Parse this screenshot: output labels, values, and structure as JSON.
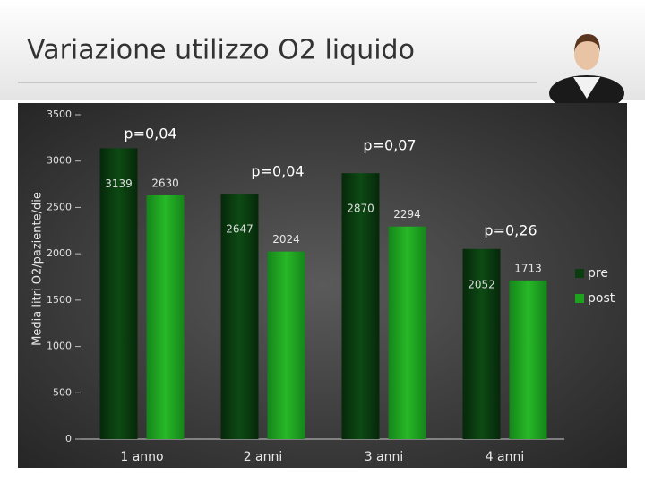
{
  "chart_data": {
    "type": "bar",
    "title": "Variazione utilizzo O2 liquido",
    "y_label": "Media litri O2/paziente/die",
    "categories": [
      "1 anno",
      "2 anni",
      "3 anni",
      "4 anni"
    ],
    "series": [
      {
        "name": "pre",
        "color": "#0b3d10",
        "values": [
          3139,
          2647,
          2870,
          2052
        ]
      },
      {
        "name": "post",
        "color": "#1ea21e",
        "values": [
          2630,
          2024,
          2294,
          1713
        ]
      }
    ],
    "annotations": [
      "p=0,04",
      "p=0,04",
      "p=0,07",
      "p=0,26"
    ],
    "ylim": [
      0,
      3500
    ],
    "yticks": [
      0,
      500,
      1000,
      1500,
      2000,
      2500,
      3000,
      3500
    ],
    "grid": false,
    "legend": "right"
  }
}
